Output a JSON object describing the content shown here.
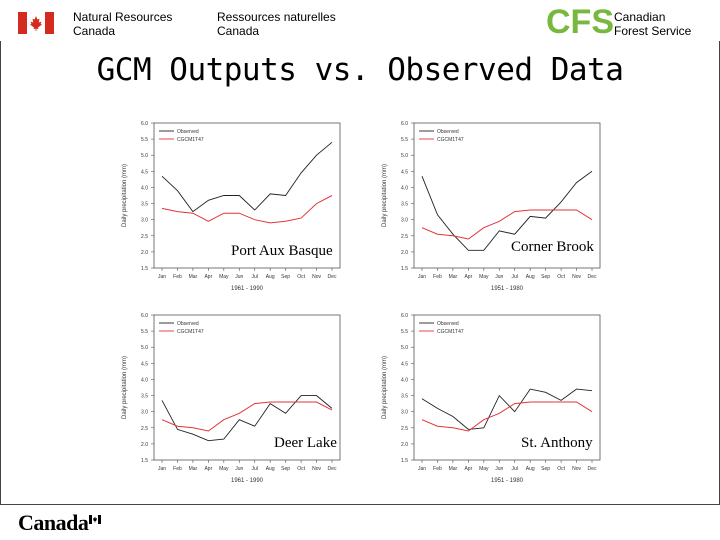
{
  "header": {
    "dept_en": "Natural Resources\nCanada",
    "dept_fr": "Ressources naturelles\nCanada",
    "logo_text": "CFS",
    "service_name": "Canadian\nForest Service"
  },
  "footer": {
    "wordmark": "Canada"
  },
  "slide": {
    "title": "GCM Outputs vs. Observed Data"
  },
  "colors": {
    "observed": "#222222",
    "model": "#e0343a",
    "logo_green": "#79b83e",
    "flag_red": "#d52b1e"
  },
  "chart_data": [
    {
      "type": "line",
      "station_label": "Port Aux Basque",
      "xlabel": "1961 - 1990",
      "ylabel": "Daily precipitation (mm)",
      "categories": [
        "Jan",
        "Feb",
        "Mar",
        "Apr",
        "May",
        "Jun",
        "Jul",
        "Aug",
        "Sep",
        "Oct",
        "Nov",
        "Dec"
      ],
      "yticks": [
        "1.5",
        "2.0",
        "2.5",
        "3.0",
        "3.5",
        "4.0",
        "4.5",
        "5.0",
        "5.5",
        "6.0"
      ],
      "ylim": [
        1.5,
        6.0
      ],
      "legend": "top-left",
      "series": [
        {
          "name": "Observed",
          "values": [
            4.35,
            3.9,
            3.25,
            3.6,
            3.75,
            3.75,
            3.3,
            3.8,
            3.75,
            4.45,
            5.0,
            5.4
          ]
        },
        {
          "name": "CGCM1T47",
          "values": [
            3.35,
            3.25,
            3.2,
            2.95,
            3.2,
            3.2,
            3.0,
            2.9,
            2.95,
            3.05,
            3.5,
            3.75
          ]
        }
      ]
    },
    {
      "type": "line",
      "station_label": "Corner Brook",
      "xlabel": "1951 - 1980",
      "ylabel": "Daily precipitation (mm)",
      "categories": [
        "Jan",
        "Feb",
        "Mar",
        "Apr",
        "May",
        "Jun",
        "Jul",
        "Aug",
        "Sep",
        "Oct",
        "Nov",
        "Dec"
      ],
      "yticks": [
        "1.5",
        "2.0",
        "2.5",
        "3.0",
        "3.5",
        "4.0",
        "4.5",
        "5.0",
        "5.5",
        "6.0"
      ],
      "ylim": [
        1.5,
        6.0
      ],
      "legend": "top-left",
      "series": [
        {
          "name": "Observed",
          "values": [
            4.35,
            3.15,
            2.55,
            2.05,
            2.05,
            2.65,
            2.55,
            3.1,
            3.05,
            3.55,
            4.15,
            4.5
          ]
        },
        {
          "name": "CGCM1T47",
          "values": [
            2.75,
            2.55,
            2.5,
            2.4,
            2.75,
            2.95,
            3.25,
            3.3,
            3.3,
            3.3,
            3.3,
            3.0
          ]
        }
      ]
    },
    {
      "type": "line",
      "station_label": "Deer Lake",
      "xlabel": "1961 - 1990",
      "ylabel": "Daily precipitation (mm)",
      "categories": [
        "Jan",
        "Feb",
        "Mar",
        "Apr",
        "May",
        "Jun",
        "Jul",
        "Aug",
        "Sep",
        "Oct",
        "Nov",
        "Dec"
      ],
      "yticks": [
        "1.5",
        "2.0",
        "2.5",
        "3.0",
        "3.5",
        "4.0",
        "4.5",
        "5.0",
        "5.5",
        "6.0"
      ],
      "ylim": [
        1.5,
        6.0
      ],
      "legend": "top-left",
      "series": [
        {
          "name": "Observed",
          "values": [
            3.35,
            2.45,
            2.3,
            2.1,
            2.15,
            2.75,
            2.55,
            3.25,
            2.95,
            3.5,
            3.5,
            3.1
          ]
        },
        {
          "name": "CGCM1T47",
          "values": [
            2.75,
            2.55,
            2.5,
            2.4,
            2.75,
            2.95,
            3.25,
            3.3,
            3.3,
            3.3,
            3.3,
            3.05
          ]
        }
      ]
    },
    {
      "type": "line",
      "station_label": "St. Anthony",
      "xlabel": "1951 - 1980",
      "ylabel": "Daily precipitation (mm)",
      "categories": [
        "Jan",
        "Feb",
        "Mar",
        "Apr",
        "May",
        "Jun",
        "Jul",
        "Aug",
        "Sep",
        "Oct",
        "Nov",
        "Dec"
      ],
      "yticks": [
        "1.5",
        "2.0",
        "2.5",
        "3.0",
        "3.5",
        "4.0",
        "4.5",
        "5.0",
        "5.5",
        "6.0"
      ],
      "ylim": [
        1.5,
        6.0
      ],
      "legend": "top-left",
      "series": [
        {
          "name": "Observed",
          "values": [
            3.4,
            3.1,
            2.85,
            2.45,
            2.5,
            3.5,
            3.0,
            3.7,
            3.6,
            3.35,
            3.7,
            3.65
          ]
        },
        {
          "name": "CGCM1T47",
          "values": [
            2.75,
            2.55,
            2.5,
            2.4,
            2.75,
            2.95,
            3.25,
            3.3,
            3.3,
            3.3,
            3.3,
            3.0
          ]
        }
      ]
    }
  ]
}
